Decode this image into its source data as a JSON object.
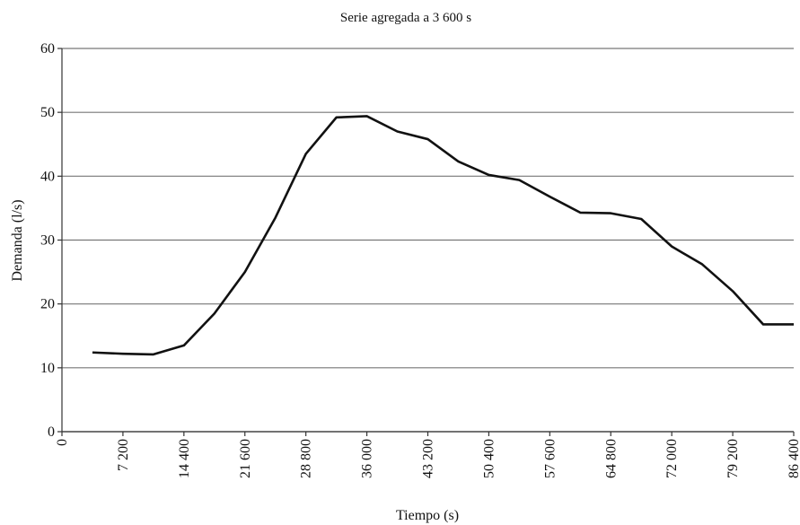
{
  "chart_data": {
    "type": "line",
    "title": "Serie agregada a 3 600 s",
    "x_label": "Tiempo (s)",
    "y_label": "Demanda (l/s)",
    "x": [
      3600,
      7200,
      10800,
      14400,
      18000,
      21600,
      25200,
      28800,
      32400,
      36000,
      39600,
      43200,
      46800,
      50400,
      54000,
      57600,
      61200,
      64800,
      68400,
      72000,
      75600,
      79200,
      82800,
      86400
    ],
    "series": [
      {
        "name": "Demanda",
        "color": "#111111",
        "values": [
          12.4,
          12.2,
          12.1,
          13.5,
          18.5,
          25,
          33.5,
          43.5,
          49.2,
          49.4,
          47,
          45.8,
          42.3,
          40.2,
          39.4,
          36.8,
          34.3,
          34.2,
          33.3,
          29,
          26.2,
          22,
          16.8,
          16.8
        ]
      }
    ],
    "xlim": [
      0,
      86400
    ],
    "xticks": [
      0,
      {
        "value": 7200,
        "label": "7 200"
      },
      {
        "value": 14400,
        "label": "14 400"
      },
      {
        "value": 21600,
        "label": "21 600"
      },
      {
        "value": 28800,
        "label": "28 800"
      },
      {
        "value": 36000,
        "label": "36 000"
      },
      {
        "value": 43200,
        "label": "43 200"
      },
      {
        "value": 50400,
        "label": "50 400"
      },
      {
        "value": 57600,
        "label": "57 600"
      },
      {
        "value": 64800,
        "label": "64 800"
      },
      {
        "value": 72000,
        "label": "72 000"
      },
      {
        "value": 79200,
        "label": "79 200"
      },
      {
        "value": 86400,
        "label": "86 400"
      }
    ],
    "ylim": [
      0,
      60
    ],
    "yticks": [
      0,
      10,
      20,
      30,
      40,
      50,
      60
    ],
    "grid": true
  }
}
